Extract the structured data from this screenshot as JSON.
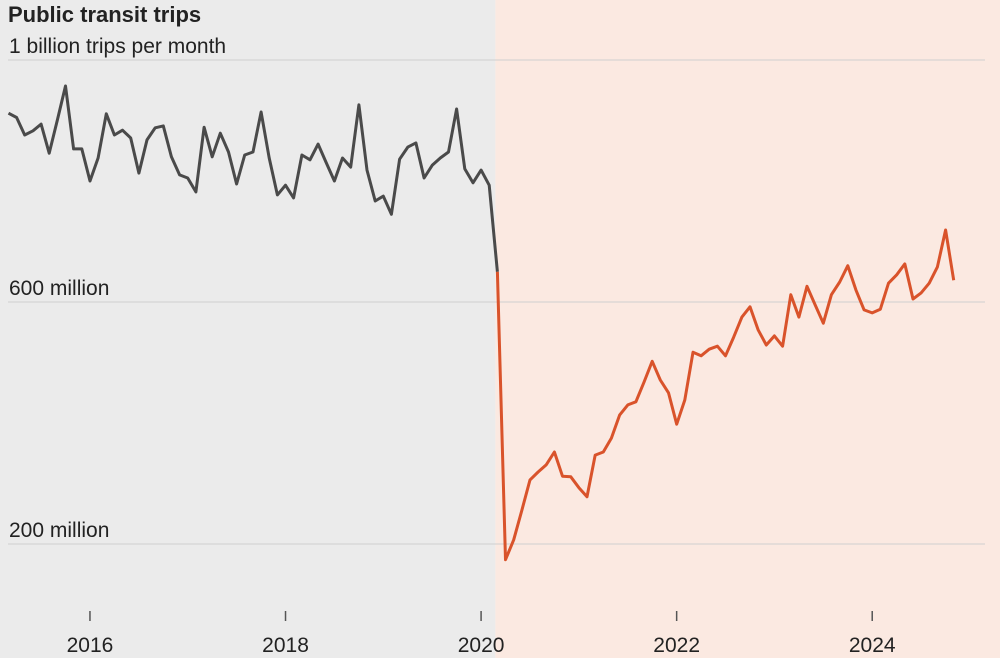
{
  "chart_data": {
    "type": "line",
    "title": "Public transit trips",
    "x": [
      2015.167,
      2015.25,
      2015.333,
      2015.417,
      2015.5,
      2015.583,
      2015.667,
      2015.75,
      2015.833,
      2015.917,
      2016,
      2016.083,
      2016.167,
      2016.25,
      2016.333,
      2016.417,
      2016.5,
      2016.583,
      2016.667,
      2016.75,
      2016.833,
      2016.917,
      2017,
      2017.083,
      2017.167,
      2017.25,
      2017.333,
      2017.417,
      2017.5,
      2017.583,
      2017.667,
      2017.75,
      2017.833,
      2017.917,
      2018,
      2018.083,
      2018.167,
      2018.25,
      2018.333,
      2018.417,
      2018.5,
      2018.583,
      2018.667,
      2018.75,
      2018.833,
      2018.917,
      2019,
      2019.083,
      2019.167,
      2019.25,
      2019.333,
      2019.417,
      2019.5,
      2019.583,
      2019.667,
      2019.75,
      2019.833,
      2019.917,
      2020,
      2020.083,
      2020.167,
      2020.25,
      2020.333,
      2020.417,
      2020.5,
      2020.583,
      2020.667,
      2020.75,
      2020.833,
      2020.917,
      2021,
      2021.083,
      2021.167,
      2021.25,
      2021.333,
      2021.417,
      2021.5,
      2021.583,
      2021.667,
      2021.75,
      2021.833,
      2021.917,
      2022,
      2022.083,
      2022.167,
      2022.25,
      2022.333,
      2022.417,
      2022.5,
      2022.583,
      2022.667,
      2022.75,
      2022.833,
      2022.917,
      2023,
      2023.083,
      2023.167,
      2023.25,
      2023.333,
      2023.417,
      2023.5,
      2023.583,
      2023.667,
      2023.75,
      2023.833,
      2023.917,
      2024,
      2024.083,
      2024.167,
      2024.25,
      2024.333,
      2024.417,
      2024.5,
      2024.583,
      2024.667,
      2024.75,
      2024.833
    ],
    "series": [
      {
        "color": "#4a4a4a",
        "values": [
          912,
          905,
          876,
          883,
          894,
          846,
          901,
          957,
          853,
          853,
          800,
          838,
          911,
          876,
          884,
          871,
          813,
          868,
          888,
          891,
          840,
          810,
          805,
          782,
          889,
          840,
          879,
          848,
          795,
          843,
          848,
          914,
          838,
          777,
          793,
          772,
          843,
          835,
          861,
          830,
          800,
          838,
          823,
          926,
          818,
          767,
          775,
          745,
          836,
          856,
          863,
          805,
          826,
          838,
          848,
          919,
          820,
          797,
          818,
          793,
          650,
          null,
          null,
          null,
          null,
          null,
          null,
          null,
          null,
          null,
          null,
          null,
          null,
          null,
          null,
          null,
          null,
          null,
          null,
          null,
          null,
          null,
          null,
          null,
          null,
          null,
          null,
          null,
          null,
          null,
          null,
          null,
          null,
          null,
          null,
          null,
          null,
          null,
          null,
          null,
          null,
          null,
          null,
          null,
          null,
          null,
          null,
          null,
          null,
          null,
          null,
          null,
          null,
          null,
          null,
          null,
          null
        ]
      },
      {
        "color": "#d9532b",
        "values": [
          null,
          null,
          null,
          null,
          null,
          null,
          null,
          null,
          null,
          null,
          null,
          null,
          null,
          null,
          null,
          null,
          null,
          null,
          null,
          null,
          null,
          null,
          null,
          null,
          null,
          null,
          null,
          null,
          null,
          null,
          null,
          null,
          null,
          null,
          null,
          null,
          null,
          null,
          null,
          null,
          null,
          null,
          null,
          null,
          null,
          null,
          null,
          null,
          null,
          null,
          null,
          null,
          null,
          null,
          null,
          null,
          null,
          null,
          null,
          null,
          650,
          174,
          207,
          256,
          306,
          319,
          331,
          352,
          312,
          311,
          293,
          278,
          347,
          352,
          375,
          413,
          430,
          435,
          468,
          502,
          471,
          450,
          398,
          438,
          517,
          511,
          522,
          527,
          511,
          542,
          575,
          592,
          554,
          529,
          544,
          527,
          612,
          575,
          626,
          595,
          565,
          612,
          633,
          660,
          620,
          587,
          582,
          588,
          631,
          645,
          663,
          605,
          615,
          631,
          658,
          719,
          636
        ]
      }
    ],
    "xlim": [
      2015.08,
      2025
    ],
    "xticks": [
      2016,
      2018,
      2020,
      2022,
      2024
    ],
    "ylim": [
      100,
      1000
    ],
    "yticks": [
      {
        "value": 200,
        "label": "200 million"
      },
      {
        "value": 600,
        "label": "600 million"
      },
      {
        "value": 1000,
        "label": "1 billion trips per month"
      }
    ],
    "grid": true
  }
}
